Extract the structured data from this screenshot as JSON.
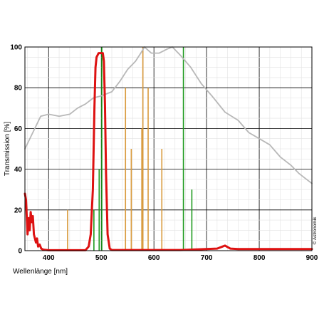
{
  "chart_data": {
    "type": "line",
    "title": "",
    "xlabel": "Wellenlänge [nm]",
    "ylabel": "Transmission [%]",
    "xlim": [
      355,
      900
    ],
    "ylim": [
      0,
      100
    ],
    "xticks": [
      400,
      500,
      600,
      700,
      800,
      900
    ],
    "yticks": [
      0,
      20,
      40,
      60,
      80,
      100
    ],
    "grid": true,
    "credit": "© Astronomik",
    "colors": {
      "filter": "#dd1111",
      "sensor": "#b8b8b8",
      "orange_lines": "#d99a3c",
      "green_lines": "#1e9a1e"
    },
    "series": [
      {
        "key": "sensor",
        "points": [
          [
            355,
            50
          ],
          [
            370,
            58
          ],
          [
            385,
            66
          ],
          [
            400,
            67
          ],
          [
            420,
            66
          ],
          [
            440,
            67
          ],
          [
            455,
            70
          ],
          [
            470,
            72
          ],
          [
            485,
            75
          ],
          [
            500,
            76
          ],
          [
            520,
            78
          ],
          [
            535,
            83
          ],
          [
            550,
            89
          ],
          [
            565,
            93
          ],
          [
            575,
            97
          ],
          [
            582,
            100
          ],
          [
            595,
            97
          ],
          [
            610,
            97
          ],
          [
            625,
            99
          ],
          [
            635,
            100
          ],
          [
            650,
            96
          ],
          [
            670,
            90
          ],
          [
            690,
            82
          ],
          [
            710,
            76
          ],
          [
            735,
            68
          ],
          [
            760,
            64
          ],
          [
            780,
            58
          ],
          [
            800,
            55
          ],
          [
            820,
            52
          ],
          [
            840,
            46
          ],
          [
            860,
            42
          ],
          [
            875,
            38
          ],
          [
            890,
            35
          ],
          [
            900,
            33
          ]
        ]
      },
      {
        "key": "filter",
        "points": [
          [
            355,
            28
          ],
          [
            357,
            25
          ],
          [
            360,
            8
          ],
          [
            362,
            16
          ],
          [
            364,
            10
          ],
          [
            366,
            19
          ],
          [
            368,
            14
          ],
          [
            370,
            17
          ],
          [
            372,
            8
          ],
          [
            374,
            6
          ],
          [
            376,
            4
          ],
          [
            378,
            6
          ],
          [
            380,
            2
          ],
          [
            383,
            3
          ],
          [
            386,
            1
          ],
          [
            390,
            0.5
          ],
          [
            400,
            0.2
          ],
          [
            470,
            0.2
          ],
          [
            476,
            2
          ],
          [
            480,
            8
          ],
          [
            484,
            30
          ],
          [
            487,
            70
          ],
          [
            489,
            90
          ],
          [
            491,
            95
          ],
          [
            495,
            97
          ],
          [
            500,
            97
          ],
          [
            503,
            97
          ],
          [
            505,
            93
          ],
          [
            507,
            72
          ],
          [
            509,
            38
          ],
          [
            512,
            8
          ],
          [
            516,
            1
          ],
          [
            520,
            0.3
          ],
          [
            650,
            0.3
          ],
          [
            690,
            0.7
          ],
          [
            720,
            1
          ],
          [
            730,
            2
          ],
          [
            735,
            2.5
          ],
          [
            745,
            1
          ],
          [
            760,
            0.8
          ],
          [
            800,
            0.8
          ],
          [
            850,
            0.8
          ],
          [
            900,
            0.8
          ]
        ]
      }
    ],
    "emission_lines": [
      {
        "x": 436,
        "y": 20,
        "color": "orange_lines"
      },
      {
        "x": 546,
        "y": 80,
        "color": "orange_lines"
      },
      {
        "x": 557,
        "y": 50,
        "color": "orange_lines"
      },
      {
        "x": 577,
        "y": 60,
        "color": "orange_lines"
      },
      {
        "x": 579,
        "y": 100,
        "color": "orange_lines"
      },
      {
        "x": 589,
        "y": 80,
        "color": "orange_lines"
      },
      {
        "x": 615,
        "y": 50,
        "color": "orange_lines"
      },
      {
        "x": 486,
        "y": 20,
        "color": "green_lines"
      },
      {
        "x": 496,
        "y": 40,
        "color": "green_lines"
      },
      {
        "x": 501,
        "y": 100,
        "color": "green_lines"
      },
      {
        "x": 656,
        "y": 100,
        "color": "green_lines"
      },
      {
        "x": 672,
        "y": 30,
        "color": "green_lines"
      }
    ]
  }
}
